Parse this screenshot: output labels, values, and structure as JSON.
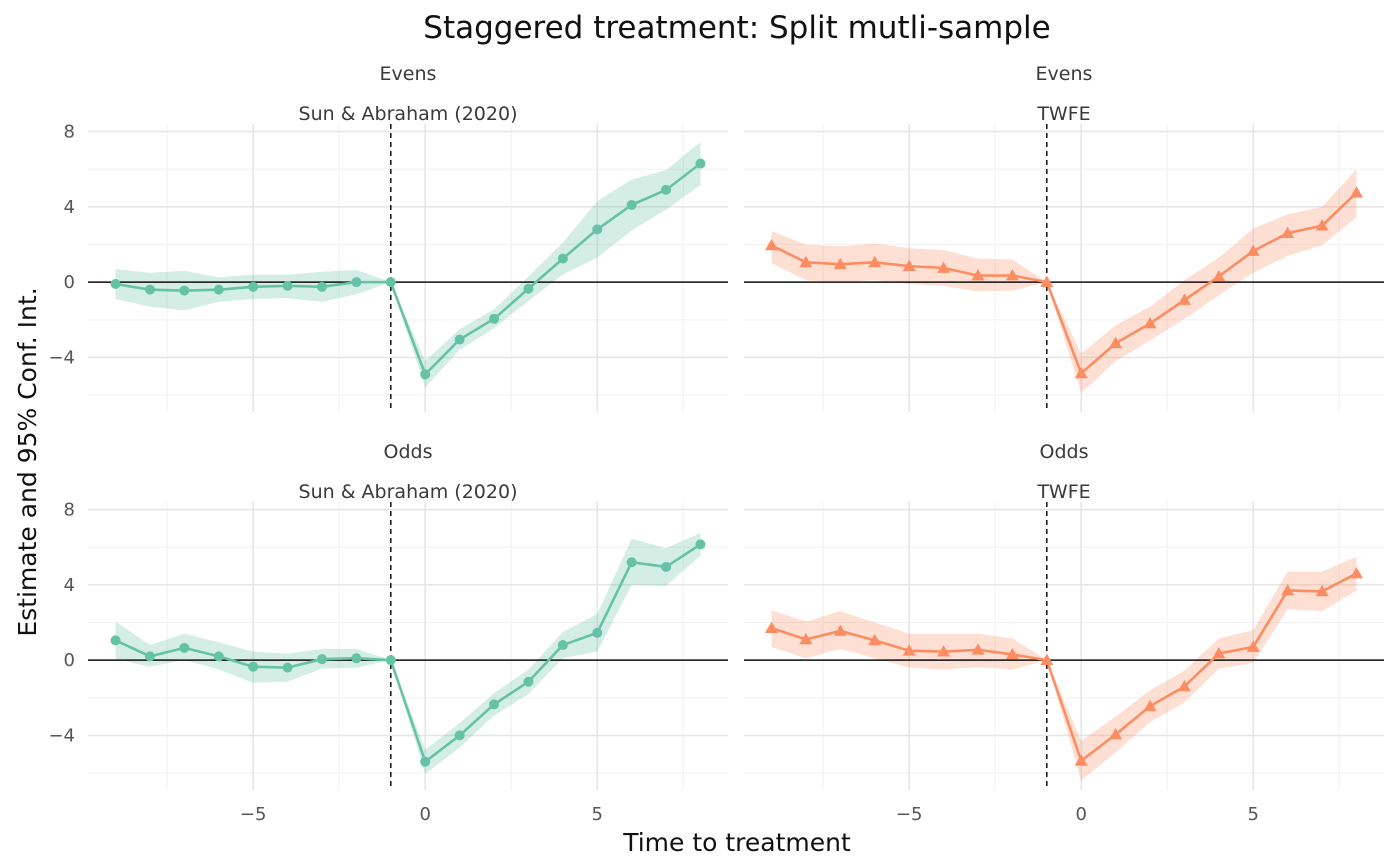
{
  "chart_data": {
    "type": "line",
    "title": "Staggered treatment: Split mutli-sample",
    "xlabel": "Time to treatment",
    "ylabel": "Estimate and 95% Conf. Int.",
    "x_ticks": [
      -5,
      0,
      5
    ],
    "y_ticks": [
      -4,
      0,
      4,
      8
    ],
    "xlim": [
      -9.8,
      8.8
    ],
    "ylim": [
      -6.9,
      8.4
    ],
    "reference_x": -1,
    "reference_y": 0,
    "colors": {
      "sun_abraham": "#66c2a5",
      "twfe": "#fc8d62"
    },
    "panels": [
      {
        "strip_top": "Evens",
        "strip_bottom": "Sun & Abraham (2020)",
        "series": {
          "name": "Sun & Abraham (2020)",
          "marker": "circle",
          "color": "#66c2a5",
          "x": [
            -9,
            -8,
            -7,
            -6,
            -5,
            -4,
            -3,
            -2,
            -1,
            0,
            1,
            2,
            3,
            4,
            5,
            6,
            7,
            8
          ],
          "y": [
            -0.1,
            -0.4,
            -0.45,
            -0.4,
            -0.25,
            -0.2,
            -0.25,
            0.0,
            0.0,
            -4.9,
            -3.05,
            -1.95,
            -0.35,
            1.25,
            2.8,
            4.1,
            4.9,
            6.3
          ],
          "lower": [
            -0.9,
            -1.3,
            -1.5,
            -1.05,
            -0.9,
            -0.85,
            -1.05,
            -0.65,
            0.0,
            -5.6,
            -3.6,
            -2.45,
            -1.0,
            0.4,
            1.3,
            2.75,
            3.85,
            5.15
          ],
          "upper": [
            0.7,
            0.5,
            0.6,
            0.25,
            0.4,
            0.4,
            0.55,
            0.65,
            0.0,
            -4.2,
            -2.5,
            -1.45,
            0.3,
            2.1,
            4.3,
            5.45,
            5.95,
            7.45
          ]
        }
      },
      {
        "strip_top": "Evens",
        "strip_bottom": "TWFE",
        "series": {
          "name": "TWFE",
          "marker": "triangle",
          "color": "#fc8d62",
          "x": [
            -9,
            -8,
            -7,
            -6,
            -5,
            -4,
            -3,
            -2,
            -1,
            0,
            1,
            2,
            3,
            4,
            5,
            6,
            7,
            8
          ],
          "y": [
            1.95,
            1.05,
            0.95,
            1.05,
            0.85,
            0.75,
            0.35,
            0.35,
            0.0,
            -4.85,
            -3.25,
            -2.2,
            -0.95,
            0.3,
            1.65,
            2.6,
            3.0,
            4.75
          ],
          "lower": [
            1.0,
            0.1,
            0.0,
            0.1,
            -0.1,
            -0.2,
            -0.5,
            -0.45,
            0.0,
            -5.9,
            -4.2,
            -3.1,
            -1.95,
            -0.7,
            0.5,
            1.4,
            1.95,
            3.45
          ],
          "upper": [
            2.7,
            2.0,
            1.9,
            2.05,
            1.8,
            1.7,
            1.25,
            1.2,
            0.0,
            -3.8,
            -2.3,
            -1.3,
            0.1,
            1.3,
            2.85,
            3.6,
            4.0,
            6.0
          ]
        }
      },
      {
        "strip_top": "Odds",
        "strip_bottom": "Sun & Abraham (2020)",
        "series": {
          "name": "Sun & Abraham (2020)",
          "marker": "circle",
          "color": "#66c2a5",
          "x": [
            -9,
            -8,
            -7,
            -6,
            -5,
            -4,
            -3,
            -2,
            -1,
            0,
            1,
            2,
            3,
            4,
            5,
            6,
            7,
            8
          ],
          "y": [
            1.05,
            0.2,
            0.65,
            0.2,
            -0.35,
            -0.4,
            0.05,
            0.1,
            0.0,
            -5.4,
            -4.0,
            -2.35,
            -1.15,
            0.8,
            1.45,
            5.2,
            4.95,
            6.15
          ],
          "lower": [
            0.05,
            -0.35,
            0.0,
            -0.5,
            -1.2,
            -1.15,
            -0.45,
            -0.4,
            0.0,
            -6.05,
            -4.65,
            -2.95,
            -1.8,
            0.1,
            0.45,
            4.0,
            3.95,
            5.55
          ],
          "upper": [
            2.05,
            0.8,
            1.4,
            0.95,
            0.45,
            0.35,
            0.6,
            0.6,
            0.0,
            -4.75,
            -3.35,
            -1.75,
            -0.5,
            1.5,
            2.45,
            6.45,
            5.95,
            6.75
          ]
        }
      },
      {
        "strip_top": "Odds",
        "strip_bottom": "TWFE",
        "series": {
          "name": "TWFE",
          "marker": "triangle",
          "color": "#fc8d62",
          "x": [
            -9,
            -8,
            -7,
            -6,
            -5,
            -4,
            -3,
            -2,
            -1,
            0,
            1,
            2,
            3,
            4,
            5,
            6,
            7,
            8
          ],
          "y": [
            1.7,
            1.1,
            1.55,
            1.05,
            0.5,
            0.45,
            0.55,
            0.3,
            0.0,
            -5.35,
            -3.95,
            -2.45,
            -1.4,
            0.35,
            0.7,
            3.7,
            3.65,
            4.6
          ],
          "lower": [
            0.7,
            0.1,
            0.6,
            0.1,
            -0.4,
            -0.5,
            -0.35,
            -0.5,
            0.0,
            -6.4,
            -4.9,
            -3.3,
            -2.25,
            -0.45,
            -0.15,
            2.7,
            2.6,
            3.7
          ],
          "upper": [
            2.65,
            2.05,
            2.6,
            2.0,
            1.4,
            1.4,
            1.4,
            1.15,
            0.0,
            -4.3,
            -3.0,
            -1.6,
            -0.55,
            1.15,
            1.6,
            4.7,
            4.7,
            5.5
          ]
        }
      }
    ]
  }
}
